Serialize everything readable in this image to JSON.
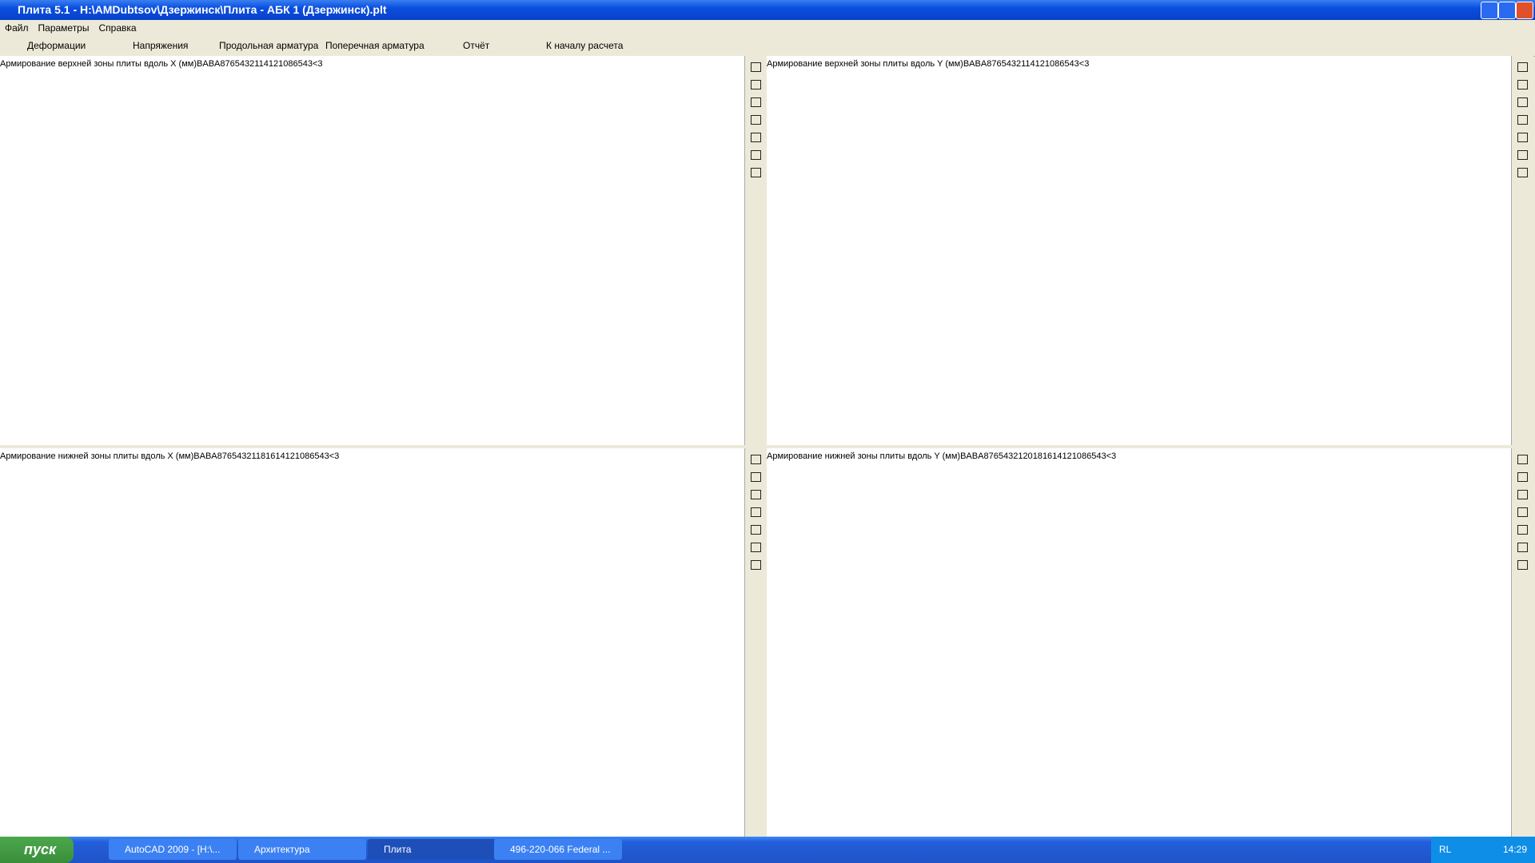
{
  "window": {
    "title": "Плита 5.1 - H:\\AMDubtsov\\Дзержинск\\Плита - АБК 1 (Дзержинск).plt"
  },
  "menu": [
    "Файл",
    "Параметры",
    "Справка"
  ],
  "tabs": [
    "Деформации",
    "Напряжения",
    "Продольная арматура",
    "Поперечная арматура",
    "Отчёт",
    "К началу расчета"
  ],
  "panels": [
    {
      "title": "Армирование верхней зоны плиты вдоль X (мм)",
      "rows": [
        "B",
        "AB",
        "A"
      ],
      "columns": [
        "8",
        "7",
        "6",
        "5",
        "4",
        "3",
        "2",
        "1"
      ],
      "legend": {
        "colors": [
          "#16648c",
          "#ef5060",
          "#1874d8",
          "#c48e72",
          "#28c0e8",
          "#e8b870",
          "#c8f4f0",
          "#f8f4c0"
        ],
        "labels": [
          "14",
          "12",
          "10",
          "8",
          "6",
          "5",
          "4",
          "3",
          "<3"
        ]
      }
    },
    {
      "title": "Армирование верхней зоны плиты вдоль Y (мм)",
      "rows": [
        "B",
        "AB",
        "A"
      ],
      "columns": [
        "8",
        "7",
        "6",
        "5",
        "4",
        "3",
        "2",
        "1"
      ],
      "legend": {
        "colors": [
          "#16648c",
          "#ef5060",
          "#1874d8",
          "#c48e72",
          "#28c0e8",
          "#e8b870",
          "#c8f4f0",
          "#f8f4c0"
        ],
        "labels": [
          "14",
          "12",
          "10",
          "8",
          "6",
          "5",
          "4",
          "3",
          "<3"
        ]
      }
    },
    {
      "title": "Армирование нижней зоны плиты вдоль X (мм)",
      "rows": [
        "B",
        "AB",
        "A"
      ],
      "columns": [
        "8",
        "7",
        "6",
        "5",
        "4",
        "3",
        "2",
        "1"
      ],
      "legend": {
        "colors": [
          "#a020e0",
          "#847c40",
          "#16648c",
          "#ef5060",
          "#1874d8",
          "#c48e72",
          "#28c0e8",
          "#e8b870",
          "#c8f4f0",
          "#f8f4c0"
        ],
        "labels": [
          "18",
          "16",
          "14",
          "12",
          "10",
          "8",
          "6",
          "5",
          "4",
          "3",
          "<3"
        ]
      }
    },
    {
      "title": "Армирование нижней зоны плиты вдоль Y (мм)",
      "rows": [
        "B",
        "AB",
        "A"
      ],
      "columns": [
        "8",
        "7",
        "6",
        "5",
        "4",
        "3",
        "2",
        "1"
      ],
      "legend": {
        "colors": [
          "#ee1010",
          "#a020e0",
          "#847c40",
          "#16648c",
          "#ef5060",
          "#1874d8",
          "#c48e72",
          "#28c0e8",
          "#e8b870",
          "#c8f4f0",
          "#f8f4c0"
        ],
        "labels": [
          "20",
          "18",
          "16",
          "14",
          "12",
          "10",
          "8",
          "6",
          "5",
          "4",
          "3",
          "<3"
        ]
      }
    }
  ],
  "taskbar": {
    "start": "пуск",
    "items": [
      "AutoCAD 2009 - [H:\\...",
      "Архитектура",
      "Плита",
      "496-220-066 Federal ..."
    ],
    "tray": {
      "lang": "RL",
      "clock": "14:29"
    }
  }
}
